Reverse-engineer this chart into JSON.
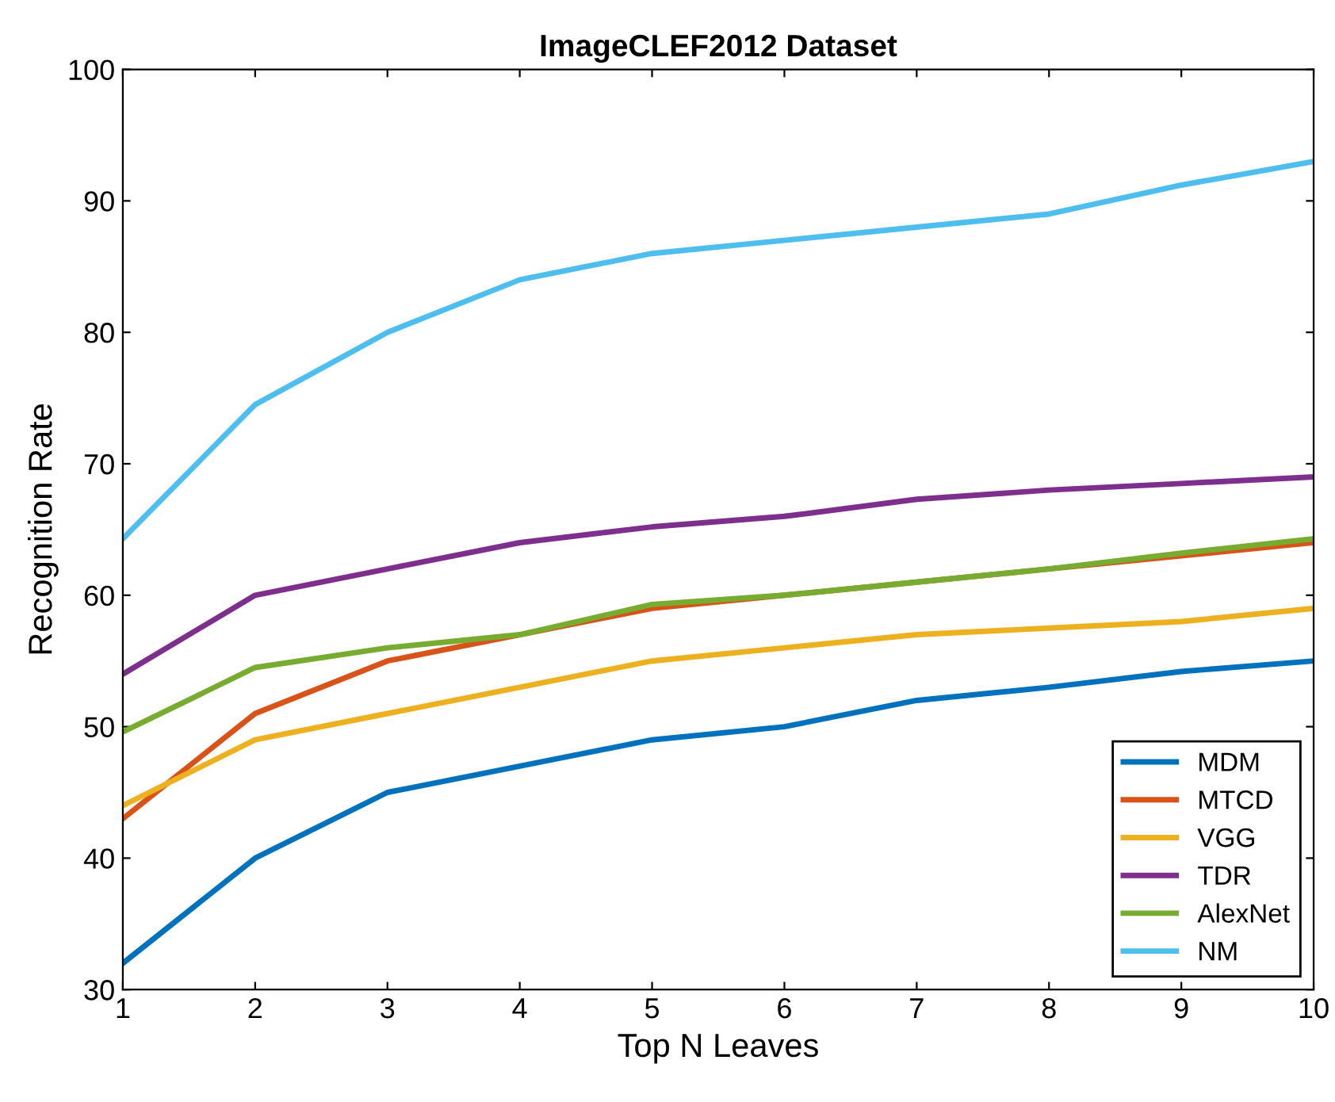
{
  "chart_data": {
    "type": "line",
    "title": "ImageCLEF2012 Dataset",
    "xlabel": "Top N Leaves",
    "ylabel": "Recognition Rate",
    "x": [
      1,
      2,
      3,
      4,
      5,
      6,
      7,
      8,
      9,
      10
    ],
    "xlim": [
      1,
      10
    ],
    "xticks": [
      1,
      2,
      3,
      4,
      5,
      6,
      7,
      8,
      9,
      10
    ],
    "ylim": [
      30,
      100
    ],
    "yticks": [
      30,
      40,
      50,
      60,
      70,
      80,
      90,
      100
    ],
    "grid": false,
    "legend": "bottom right",
    "marker": "none",
    "line_style": "solid",
    "series": [
      {
        "name": "MDM",
        "color": "#0072bd",
        "values": [
          32,
          40,
          45,
          47,
          49,
          50,
          52,
          53,
          54.2,
          55
        ]
      },
      {
        "name": "MTCD",
        "color": "#d95319",
        "values": [
          43,
          51,
          55,
          57,
          59,
          60,
          61,
          62,
          63,
          64
        ]
      },
      {
        "name": "VGG",
        "color": "#edb120",
        "values": [
          44,
          49,
          51,
          53,
          55,
          56,
          57,
          57.5,
          58,
          59
        ]
      },
      {
        "name": "TDR",
        "color": "#7e2f8e",
        "values": [
          54,
          60,
          62,
          64,
          65.2,
          66,
          67.3,
          68,
          68.5,
          69
        ]
      },
      {
        "name": "AlexNet",
        "color": "#77ac30",
        "values": [
          49.6,
          54.5,
          56,
          57,
          59.3,
          60,
          61,
          62,
          63.2,
          64.3
        ]
      },
      {
        "name": "NM",
        "color": "#4dbeee",
        "values": [
          64.3,
          74.5,
          80,
          84,
          86,
          87,
          88,
          89,
          91.2,
          93
        ]
      }
    ]
  }
}
